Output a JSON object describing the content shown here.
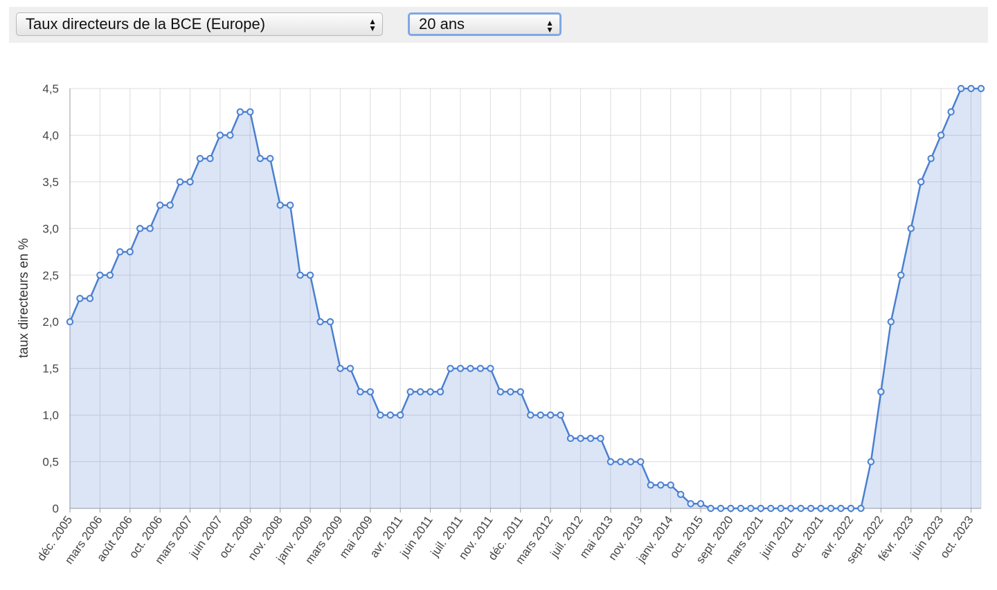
{
  "controls": {
    "indicator": "Taux directeurs de la BCE (Europe)",
    "period": "20 ans"
  },
  "chart_data": {
    "type": "line",
    "y_label": "taux directeurs en %",
    "color": "#4a7fd0",
    "area": true,
    "grid": true,
    "categories": [
      "déc. 2005",
      null,
      null,
      "mars 2006",
      null,
      null,
      "août 2006",
      null,
      null,
      "oct. 2006",
      null,
      null,
      "mars 2007",
      null,
      null,
      "juin 2007",
      null,
      null,
      "oct. 2008",
      null,
      null,
      "nov. 2008",
      null,
      null,
      "janv. 2009",
      null,
      null,
      "mars 2009",
      null,
      null,
      "mai 2009",
      null,
      null,
      "avr. 2011",
      null,
      null,
      "juin 2011",
      null,
      null,
      "juil. 2011",
      null,
      null,
      "nov. 2011",
      null,
      null,
      "déc. 2011",
      null,
      null,
      "mars 2012",
      null,
      null,
      "juil. 2012",
      null,
      null,
      "mai 2013",
      null,
      null,
      "nov. 2013",
      null,
      null,
      "janv. 2014",
      null,
      null,
      "oct. 2015",
      null,
      null,
      "sept. 2020",
      null,
      null,
      "mars 2021",
      null,
      null,
      "juin 2021",
      null,
      null,
      "oct. 2021",
      null,
      null,
      "avr. 2022",
      null,
      null,
      "sept. 2022",
      null,
      null,
      "févr. 2023",
      null,
      null,
      "juin 2023",
      null,
      null,
      "oct. 2023",
      null
    ],
    "values": [
      2.0,
      2.25,
      2.25,
      2.5,
      2.5,
      2.75,
      2.75,
      3.0,
      3.0,
      3.25,
      3.25,
      3.5,
      3.5,
      3.75,
      3.75,
      4.0,
      4.0,
      4.25,
      4.25,
      3.75,
      3.75,
      3.25,
      3.25,
      2.5,
      2.5,
      2.0,
      2.0,
      1.5,
      1.5,
      1.25,
      1.25,
      1.0,
      1.0,
      1.0,
      1.25,
      1.25,
      1.25,
      1.25,
      1.5,
      1.5,
      1.5,
      1.5,
      1.5,
      1.25,
      1.25,
      1.25,
      1.0,
      1.0,
      1.0,
      1.0,
      0.75,
      0.75,
      0.75,
      0.75,
      0.5,
      0.5,
      0.5,
      0.5,
      0.25,
      0.25,
      0.25,
      0.15,
      0.05,
      0.05,
      0,
      0,
      0,
      0,
      0,
      0,
      0,
      0,
      0,
      0,
      0,
      0,
      0,
      0,
      0,
      0,
      0.5,
      1.25,
      2.0,
      2.5,
      3.0,
      3.5,
      3.75,
      4.0,
      4.25,
      4.5,
      4.5,
      4.5
    ],
    "ylim": [
      0,
      4.5
    ],
    "yticks": [
      0,
      {
        "value": 0.5,
        "label": "0,5"
      },
      {
        "value": 1,
        "label": "1,0"
      },
      {
        "value": 1.5,
        "label": "1,5"
      },
      {
        "value": 2,
        "label": "2,0"
      },
      {
        "value": 2.5,
        "label": "2,5"
      },
      {
        "value": 3,
        "label": "3,0"
      },
      {
        "value": 3.5,
        "label": "3,5"
      },
      {
        "value": 4,
        "label": "4,0"
      },
      {
        "value": 4.5,
        "label": "4,5"
      }
    ]
  }
}
